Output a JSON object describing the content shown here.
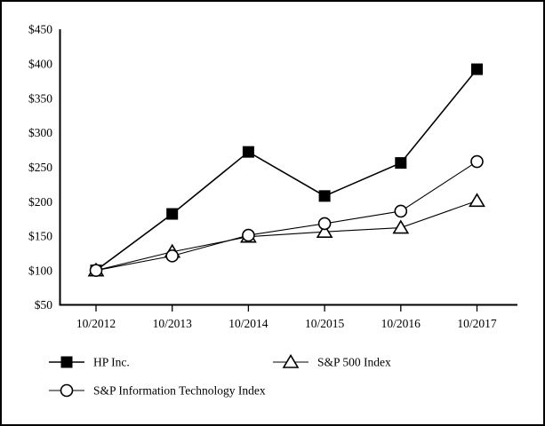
{
  "chart_data": {
    "type": "line",
    "title": "",
    "x_categories": [
      "10/2012",
      "10/2013",
      "10/2014",
      "10/2015",
      "10/2016",
      "10/2017"
    ],
    "series": [
      {
        "name": "HP Inc.",
        "marker": "square",
        "marker_style": "filled",
        "values": [
          100,
          182,
          272,
          208,
          256,
          392
        ]
      },
      {
        "name": "S&P 500 Index",
        "marker": "triangle",
        "marker_style": "open",
        "values": [
          100,
          127,
          149,
          156,
          162,
          201
        ]
      },
      {
        "name": "S&P Information Technology Index",
        "marker": "circle",
        "marker_style": "open",
        "values": [
          100,
          121,
          151,
          168,
          186,
          258
        ]
      }
    ],
    "y_axis": {
      "min": 50,
      "max": 450,
      "step": 50,
      "tick_labels": [
        "$450",
        "$400",
        "$350",
        "$300",
        "$250",
        "$200",
        "$150",
        "$100",
        "$50"
      ],
      "prefix": "$"
    },
    "grid": false,
    "legend_position": "below-left"
  },
  "colors": {
    "background": "#ffffff",
    "frame_border": "#000000",
    "line": "#000000",
    "filled_marker_fill": "#000000",
    "open_marker_fill": "#ffffff",
    "text": "#000000"
  }
}
